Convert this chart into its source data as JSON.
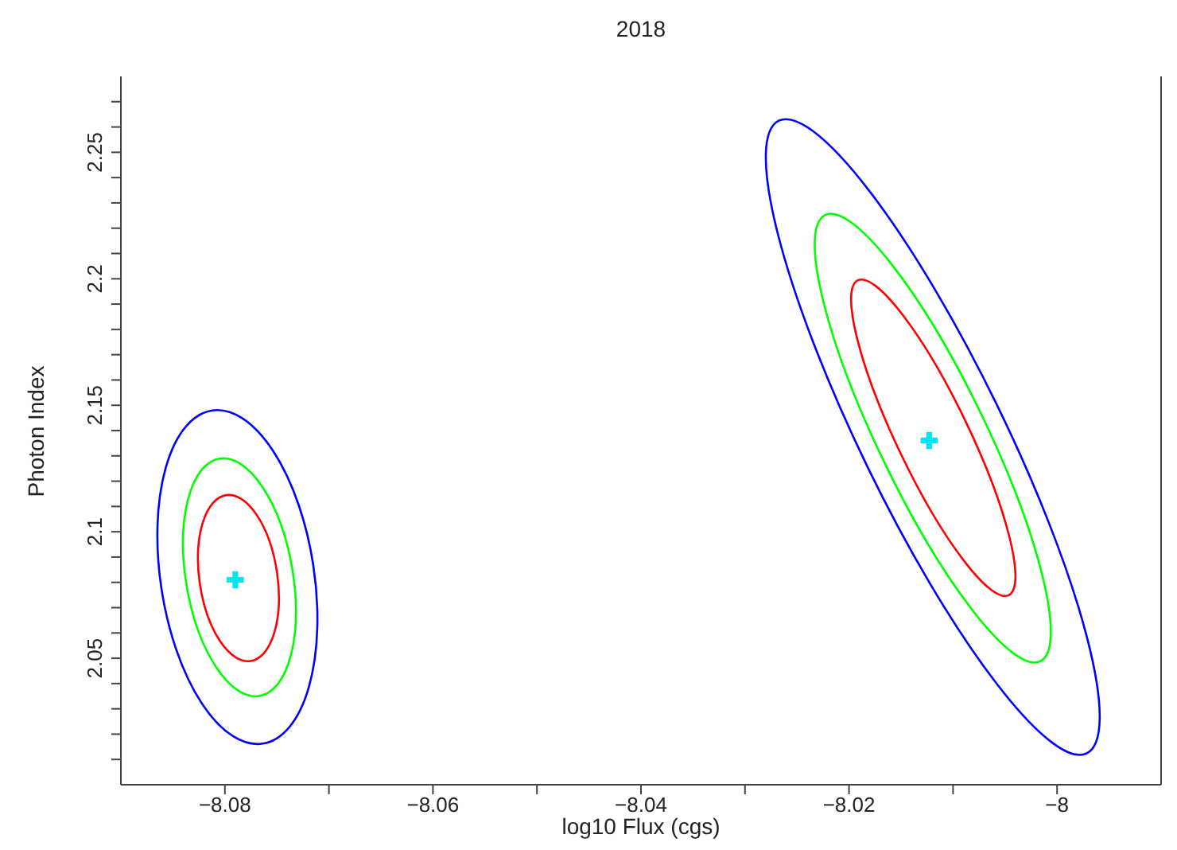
{
  "chart_data": {
    "type": "scatter",
    "title": "2018",
    "xlabel": "log10 Flux (cgs)",
    "ylabel": "Photon Index",
    "xlim": [
      -8.09,
      -7.99
    ],
    "ylim": [
      2.0,
      2.28
    ],
    "xticks": [
      {
        "value": -8.08,
        "label": "−8.08"
      },
      {
        "value": -8.07,
        "label": null
      },
      {
        "value": -8.06,
        "label": "−8.06"
      },
      {
        "value": -8.05,
        "label": null
      },
      {
        "value": -8.04,
        "label": "−8.04"
      },
      {
        "value": -8.03,
        "label": null
      },
      {
        "value": -8.02,
        "label": "−8.02"
      },
      {
        "value": -8.01,
        "label": null
      },
      {
        "value": -8,
        "label": "−8"
      }
    ],
    "yticks": [
      {
        "value": 2.01,
        "label": null
      },
      {
        "value": 2.02,
        "label": null
      },
      {
        "value": 2.03,
        "label": null
      },
      {
        "value": 2.04,
        "label": null
      },
      2.05,
      {
        "value": 2.06,
        "label": null
      },
      {
        "value": 2.07,
        "label": null
      },
      {
        "value": 2.08,
        "label": null
      },
      {
        "value": 2.09,
        "label": null
      },
      2.1,
      {
        "value": 2.11,
        "label": null
      },
      {
        "value": 2.12,
        "label": null
      },
      {
        "value": 2.13,
        "label": null
      },
      {
        "value": 2.14,
        "label": null
      },
      2.15,
      {
        "value": 2.16,
        "label": null
      },
      {
        "value": 2.17,
        "label": null
      },
      {
        "value": 2.18,
        "label": null
      },
      {
        "value": 2.19,
        "label": null
      },
      2.2,
      {
        "value": 2.21,
        "label": null
      },
      {
        "value": 2.22,
        "label": null
      },
      {
        "value": 2.23,
        "label": null
      },
      {
        "value": 2.24,
        "label": null
      },
      2.25,
      {
        "value": 2.26,
        "label": null
      },
      {
        "value": 2.27,
        "label": null
      }
    ],
    "series": [
      {
        "color": "#00e5ee",
        "marker": "cross",
        "x": [
          -8.079,
          -8.0123
        ],
        "values": [
          2.081,
          2.1361
        ]
      }
    ]
  }
}
